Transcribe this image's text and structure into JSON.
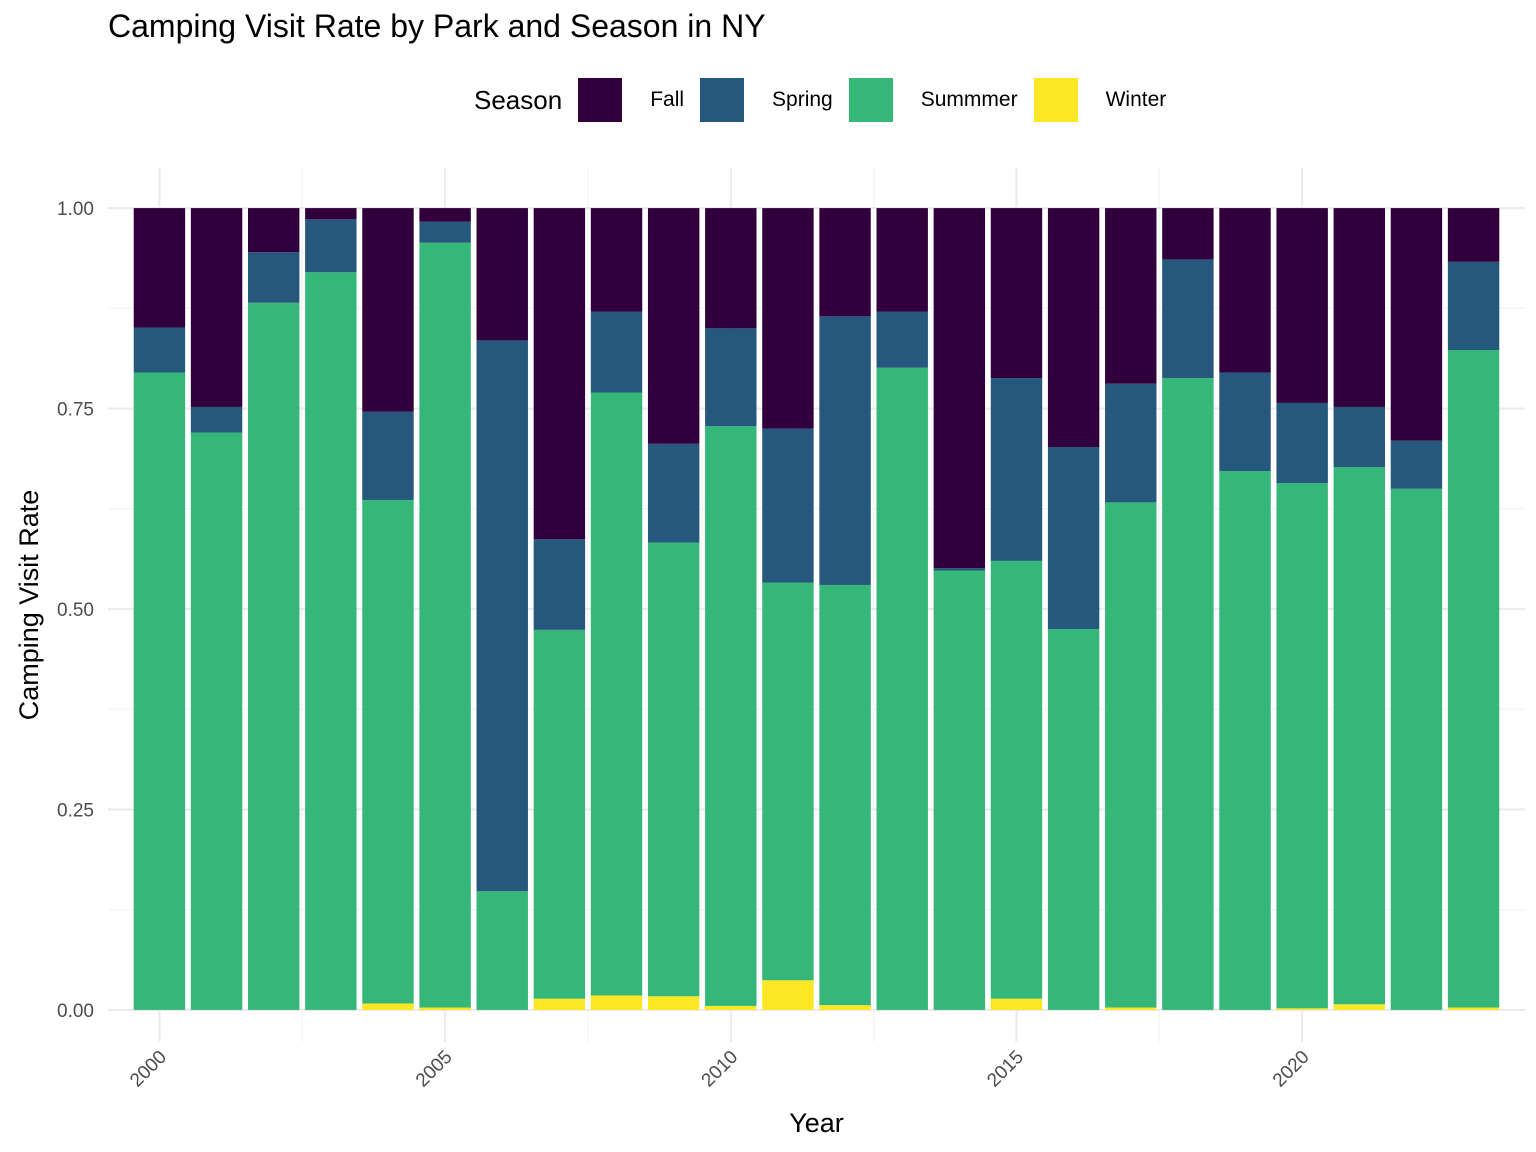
{
  "chart_data": {
    "type": "bar",
    "stacked": true,
    "title": "Camping Visit Rate by Park and Season in NY",
    "xlabel": "Year",
    "ylabel": "Camping Visit Rate",
    "ylim": [
      -0.04,
      1.05
    ],
    "xlim": [
      1999.1,
      2023.9
    ],
    "y_ticks": [
      0.0,
      0.25,
      0.5,
      0.75,
      1.0
    ],
    "y_tick_labels": [
      "0.00",
      "0.25",
      "0.50",
      "0.75",
      "1.00"
    ],
    "x_ticks": [
      2000,
      2005,
      2010,
      2015,
      2020
    ],
    "x_tick_labels": [
      "2000",
      "2005",
      "2010",
      "2015",
      "2020"
    ],
    "grid": true,
    "legend": {
      "title": "Season",
      "position": "top"
    },
    "categories": [
      2000,
      2001,
      2002,
      2003,
      2004,
      2005,
      2006,
      2007,
      2008,
      2009,
      2010,
      2011,
      2012,
      2013,
      2014,
      2015,
      2016,
      2017,
      2018,
      2019,
      2020,
      2021,
      2022,
      2023
    ],
    "series": [
      {
        "name": "Winter",
        "color": "#FDE725",
        "values": [
          0.0,
          0.0,
          0.0,
          0.0,
          0.008,
          0.003,
          0.0,
          0.014,
          0.018,
          0.017,
          0.005,
          0.037,
          0.006,
          0.0,
          0.0,
          0.014,
          0.0,
          0.003,
          0.0,
          0.0,
          0.002,
          0.007,
          0.0,
          0.003
        ]
      },
      {
        "name": "Summmer",
        "color": "#35B779",
        "values": [
          0.795,
          0.72,
          0.882,
          0.92,
          0.628,
          0.954,
          0.148,
          0.46,
          0.752,
          0.566,
          0.723,
          0.496,
          0.524,
          0.801,
          0.548,
          0.546,
          0.475,
          0.63,
          0.788,
          0.672,
          0.655,
          0.67,
          0.65,
          0.82
        ]
      },
      {
        "name": "Spring",
        "color": "#26577D",
        "values": [
          0.056,
          0.032,
          0.063,
          0.066,
          0.11,
          0.026,
          0.687,
          0.113,
          0.101,
          0.123,
          0.122,
          0.192,
          0.335,
          0.07,
          0.003,
          0.228,
          0.227,
          0.148,
          0.148,
          0.123,
          0.1,
          0.075,
          0.06,
          0.11
        ]
      },
      {
        "name": "Fall",
        "color": "#31003C",
        "values": [
          0.149,
          0.248,
          0.055,
          0.014,
          0.254,
          0.017,
          0.165,
          0.413,
          0.129,
          0.294,
          0.15,
          0.275,
          0.135,
          0.129,
          0.449,
          0.212,
          0.298,
          0.219,
          0.064,
          0.205,
          0.243,
          0.248,
          0.29,
          0.067
        ]
      }
    ]
  }
}
